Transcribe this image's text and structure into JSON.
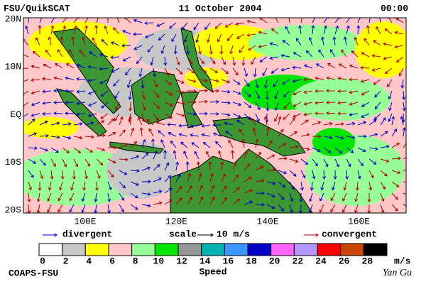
{
  "header": {
    "left": "FSU/QuikSCAT",
    "date": "11 October 2004",
    "time": "00:00"
  },
  "map": {
    "lat_labels": [
      "20N",
      "10N",
      "EQ",
      "10S",
      "20S"
    ],
    "lon_labels": [
      "100E",
      "120E",
      "140E",
      "160E"
    ]
  },
  "legend": {
    "divergent": "divergent",
    "scale": "scale",
    "scale_value": "10 m/s",
    "convergent": "convergent",
    "divergent_color": "#0000c8",
    "convergent_color": "#b40000"
  },
  "colorbar": {
    "colors": [
      "#ffffff",
      "#c8c8c8",
      "#ffff00",
      "#ffc8c8",
      "#96ff96",
      "#00e600",
      "#969696",
      "#00b4b4",
      "#3c96ff",
      "#0000c8",
      "#ff64ff",
      "#b496ff",
      "#ff0000",
      "#c84600",
      "#000000"
    ],
    "ticks": [
      0,
      2,
      4,
      6,
      8,
      10,
      12,
      14,
      16,
      18,
      20,
      22,
      24,
      26,
      28
    ],
    "unit": "m/s",
    "title": "Speed"
  },
  "footer": {
    "left": "COAPS-FSU",
    "right": "Yan Gu"
  }
}
